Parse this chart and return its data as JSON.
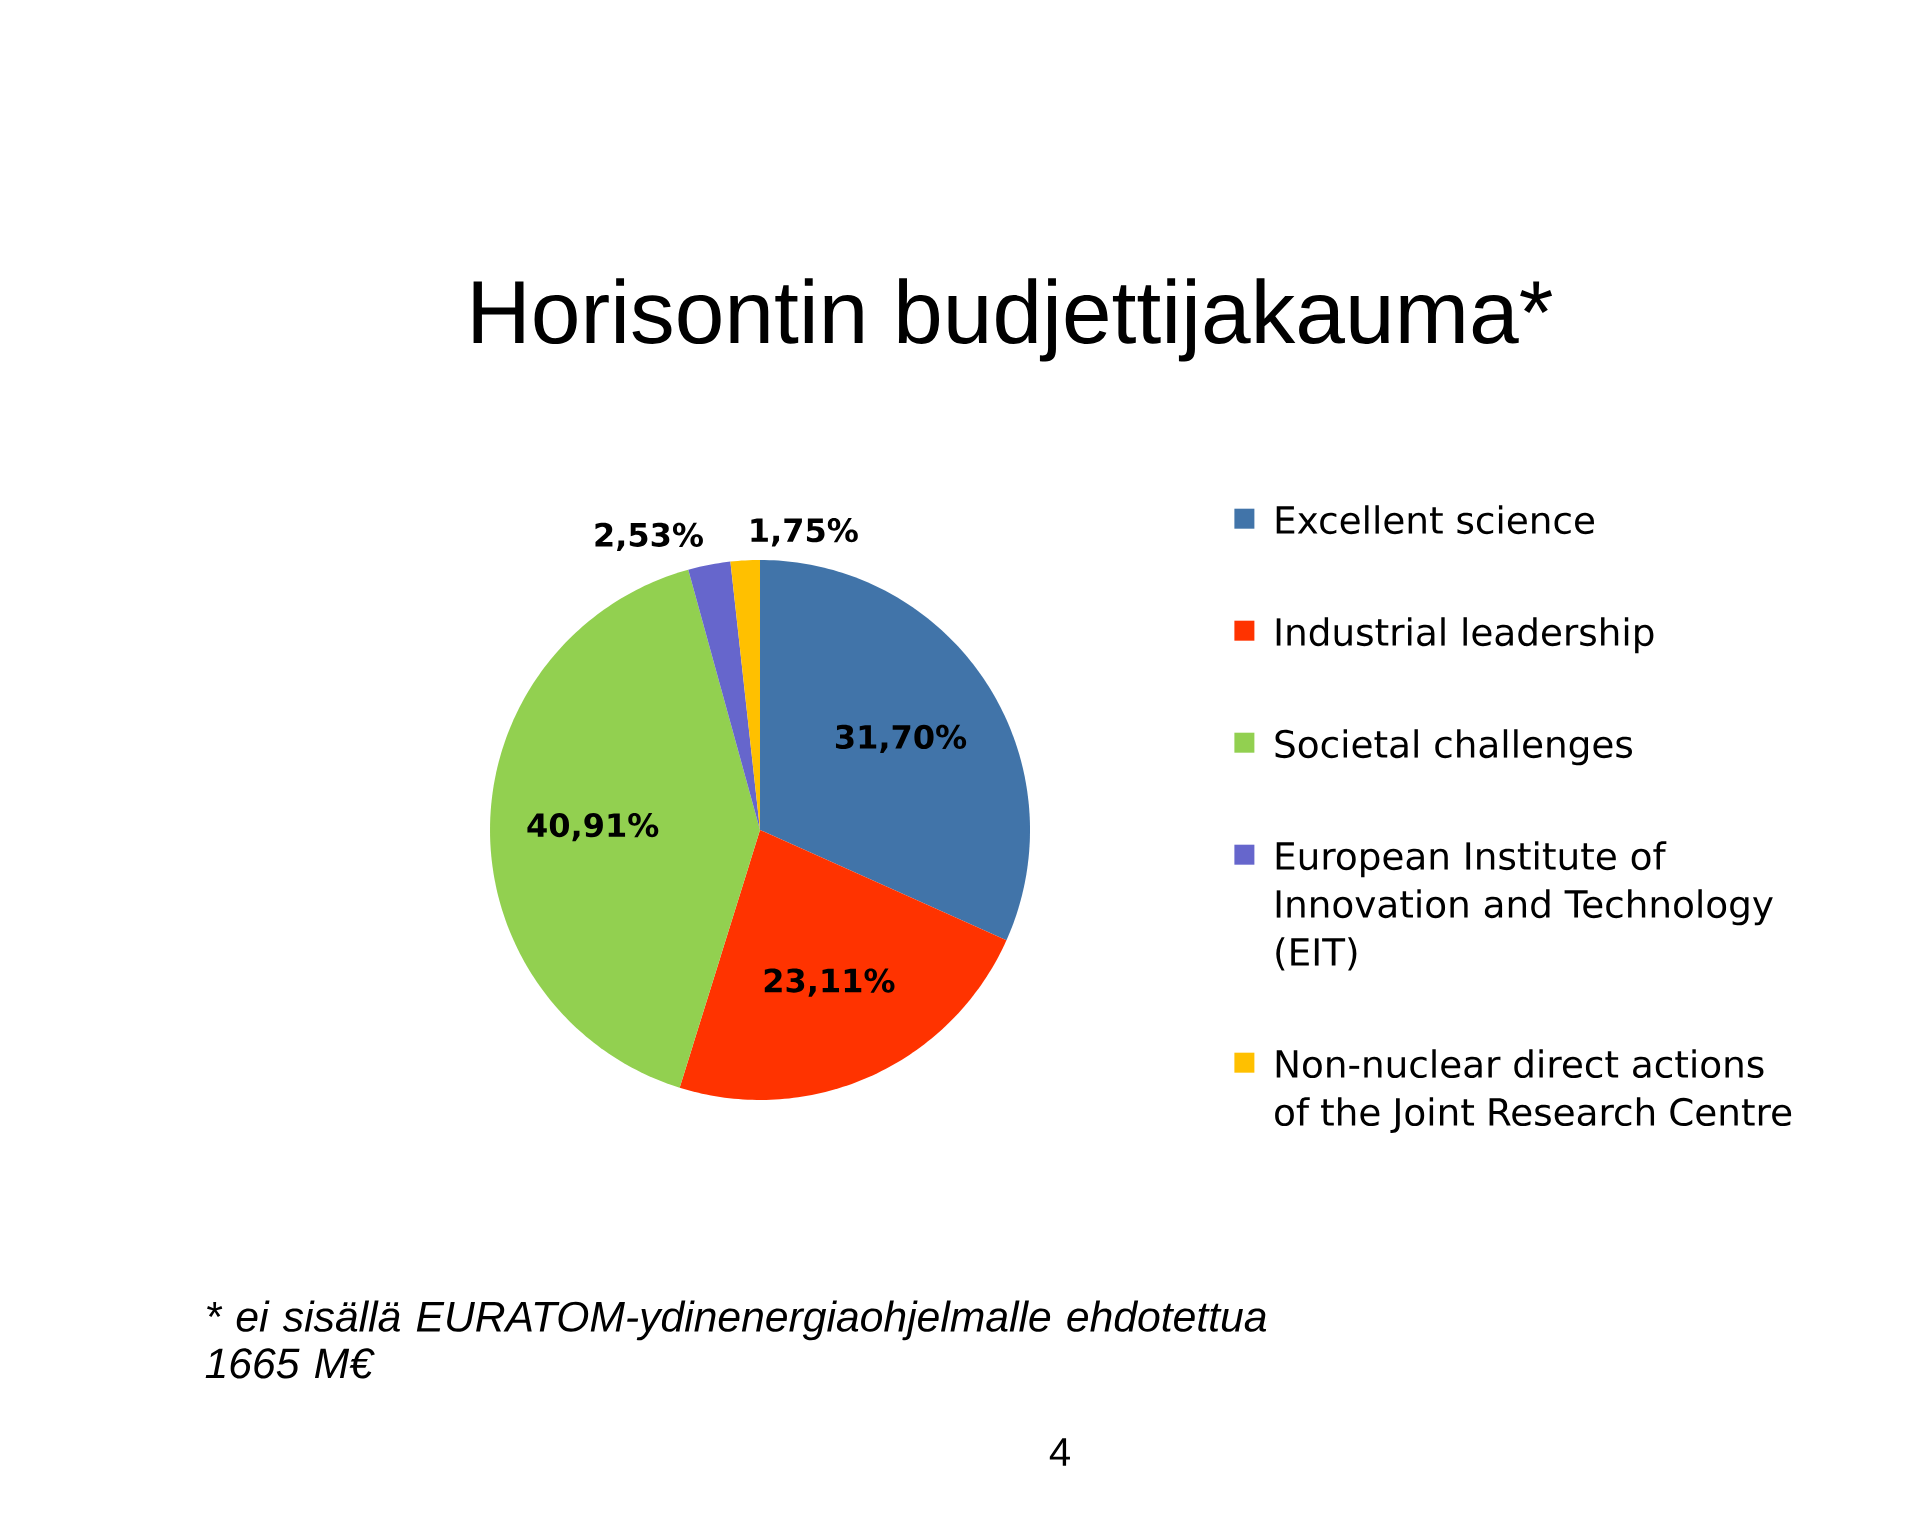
{
  "chart_data": {
    "type": "pie",
    "title": "Horisontin budjettijakauma*",
    "categories": [
      "Excellent science",
      "Industrial leadership",
      "Societal challenges",
      "European Institute of Innovation and Technology (EIT)",
      "Non-nuclear direct actions of the Joint Research Centre"
    ],
    "values": [
      31.7,
      23.11,
      40.91,
      2.53,
      1.75
    ],
    "colors": [
      "#4174a9",
      "#ff3300",
      "#92d050",
      "#6666cc",
      "#ffc000"
    ],
    "value_labels": [
      "31,70%",
      "23,11%",
      "40,91%",
      "2,53%",
      "1,75%"
    ],
    "legend": "right",
    "annotations": [
      "* ei sisällä EURATOM-ydinenergiaohjelmalle ehdotettua 1665 M€",
      "4"
    ]
  }
}
